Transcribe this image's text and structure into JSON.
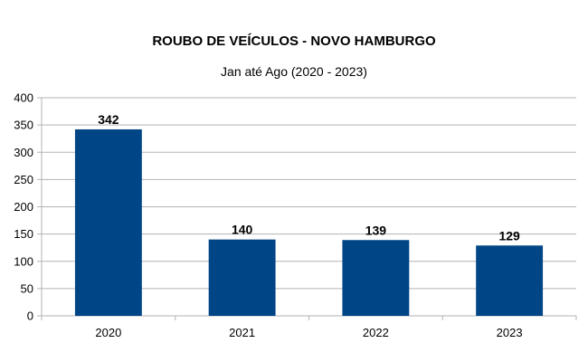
{
  "chart_data": {
    "type": "bar",
    "title": "ROUBO DE VEÍCULOS - NOVO HAMBURGO",
    "subtitle": "Jan até Ago (2020 - 2023)",
    "categories": [
      "2020",
      "2021",
      "2022",
      "2023"
    ],
    "values": [
      342,
      140,
      139,
      129
    ],
    "ylim": [
      0,
      400
    ],
    "yticks": [
      0,
      50,
      100,
      150,
      200,
      250,
      300,
      350,
      400
    ],
    "grid": true,
    "data_labels": true,
    "bar_color": "#004586",
    "grid_color": "#b3b3b3"
  }
}
